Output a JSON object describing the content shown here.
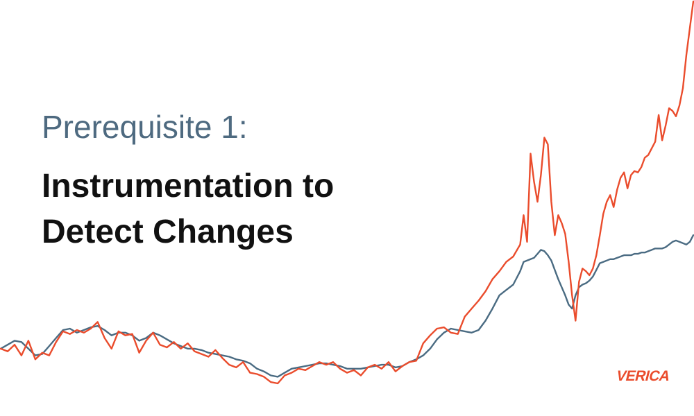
{
  "slide": {
    "subtitle": "Prerequisite 1:",
    "title_line_1": "Instrumentation to",
    "title_line_2": "Detect Changes"
  },
  "logo": {
    "text": "VERICA",
    "color": "#ea4c2c"
  },
  "colors": {
    "raw_series": "#ea4c2c",
    "smoothed_series": "#4a6b82",
    "subtitle": "#4e6a80",
    "title": "#111111",
    "background": "#ffffff"
  },
  "chart_data": {
    "type": "line",
    "title": "",
    "xlabel": "",
    "ylabel": "",
    "grid": false,
    "axes_visible": false,
    "legend": "none",
    "ylim": [
      0,
      600
    ],
    "x": [
      0,
      10,
      20,
      30,
      40,
      50,
      60,
      70,
      80,
      90,
      100,
      110,
      120,
      130,
      140,
      150,
      160,
      170,
      180,
      190,
      200,
      210,
      220,
      230,
      240,
      250,
      260,
      270,
      280,
      290,
      300,
      310,
      320,
      330,
      340,
      350,
      360,
      370,
      380,
      390,
      400,
      410,
      420,
      430,
      440,
      450,
      460,
      470,
      480,
      490,
      500,
      510,
      520,
      530,
      540,
      550,
      560,
      570,
      580,
      590,
      600,
      610,
      620,
      630,
      640,
      650,
      660,
      670,
      680,
      690,
      700,
      710,
      720,
      730,
      740,
      750,
      755,
      760,
      765,
      770,
      775,
      780,
      785,
      790,
      795,
      800,
      805,
      810,
      815,
      820,
      825,
      830,
      835,
      840,
      845,
      850,
      855,
      860,
      865,
      870,
      875,
      880,
      885,
      890,
      895,
      900,
      905,
      910,
      915,
      920,
      925,
      930,
      935,
      940,
      945,
      950,
      955,
      960,
      965,
      970,
      975,
      980,
      985,
      990,
      995,
      1000
    ],
    "series": [
      {
        "values": [
          80,
          76,
          86,
          70,
          92,
          64,
          74,
          70,
          90,
          106,
          102,
          108,
          104,
          110,
          120,
          96,
          80,
          106,
          100,
          102,
          74,
          92,
          104,
          86,
          82,
          90,
          80,
          88,
          76,
          72,
          68,
          78,
          66,
          56,
          52,
          60,
          44,
          42,
          38,
          30,
          28,
          40,
          44,
          50,
          48,
          54,
          60,
          56,
          60,
          50,
          44,
          48,
          40,
          52,
          56,
          50,
          60,
          46,
          54,
          60,
          62,
          88,
          100,
          110,
          112,
          104,
          102,
          128,
          140,
          152,
          166,
          184,
          196,
          210,
          218,
          236,
          280,
          240,
          372,
          330,
          300,
          340,
          396,
          386,
          300,
          250,
          280,
          268,
          252,
          210,
          160,
          122,
          180,
          200,
          196,
          190,
          200,
          220,
          250,
          282,
          300,
          310,
          292,
          318,
          336,
          344,
          320,
          340,
          346,
          344,
          352,
          366,
          370,
          380,
          390,
          430,
          392,
          414,
          440,
          436,
          428,
          444,
          470,
          520,
          560,
          600
        ]
      },
      {
        "values": [
          80,
          86,
          92,
          90,
          80,
          70,
          72,
          84,
          96,
          108,
          110,
          104,
          108,
          112,
          114,
          108,
          100,
          104,
          104,
          100,
          92,
          96,
          104,
          100,
          94,
          88,
          84,
          80,
          80,
          78,
          74,
          72,
          70,
          68,
          64,
          62,
          58,
          50,
          46,
          40,
          38,
          44,
          50,
          52,
          54,
          56,
          58,
          58,
          56,
          54,
          50,
          50,
          50,
          52,
          54,
          56,
          56,
          52,
          54,
          60,
          64,
          70,
          80,
          94,
          104,
          110,
          108,
          106,
          104,
          108,
          122,
          140,
          160,
          168,
          176,
          196,
          210,
          212,
          214,
          216,
          222,
          228,
          226,
          220,
          212,
          198,
          184,
          172,
          160,
          146,
          140,
          160,
          172,
          176,
          178,
          182,
          188,
          198,
          208,
          210,
          212,
          214,
          214,
          216,
          218,
          220,
          220,
          220,
          222,
          222,
          224,
          224,
          226,
          228,
          230,
          230,
          230,
          232,
          236,
          240,
          242,
          240,
          238,
          236,
          240,
          250
        ]
      }
    ]
  }
}
